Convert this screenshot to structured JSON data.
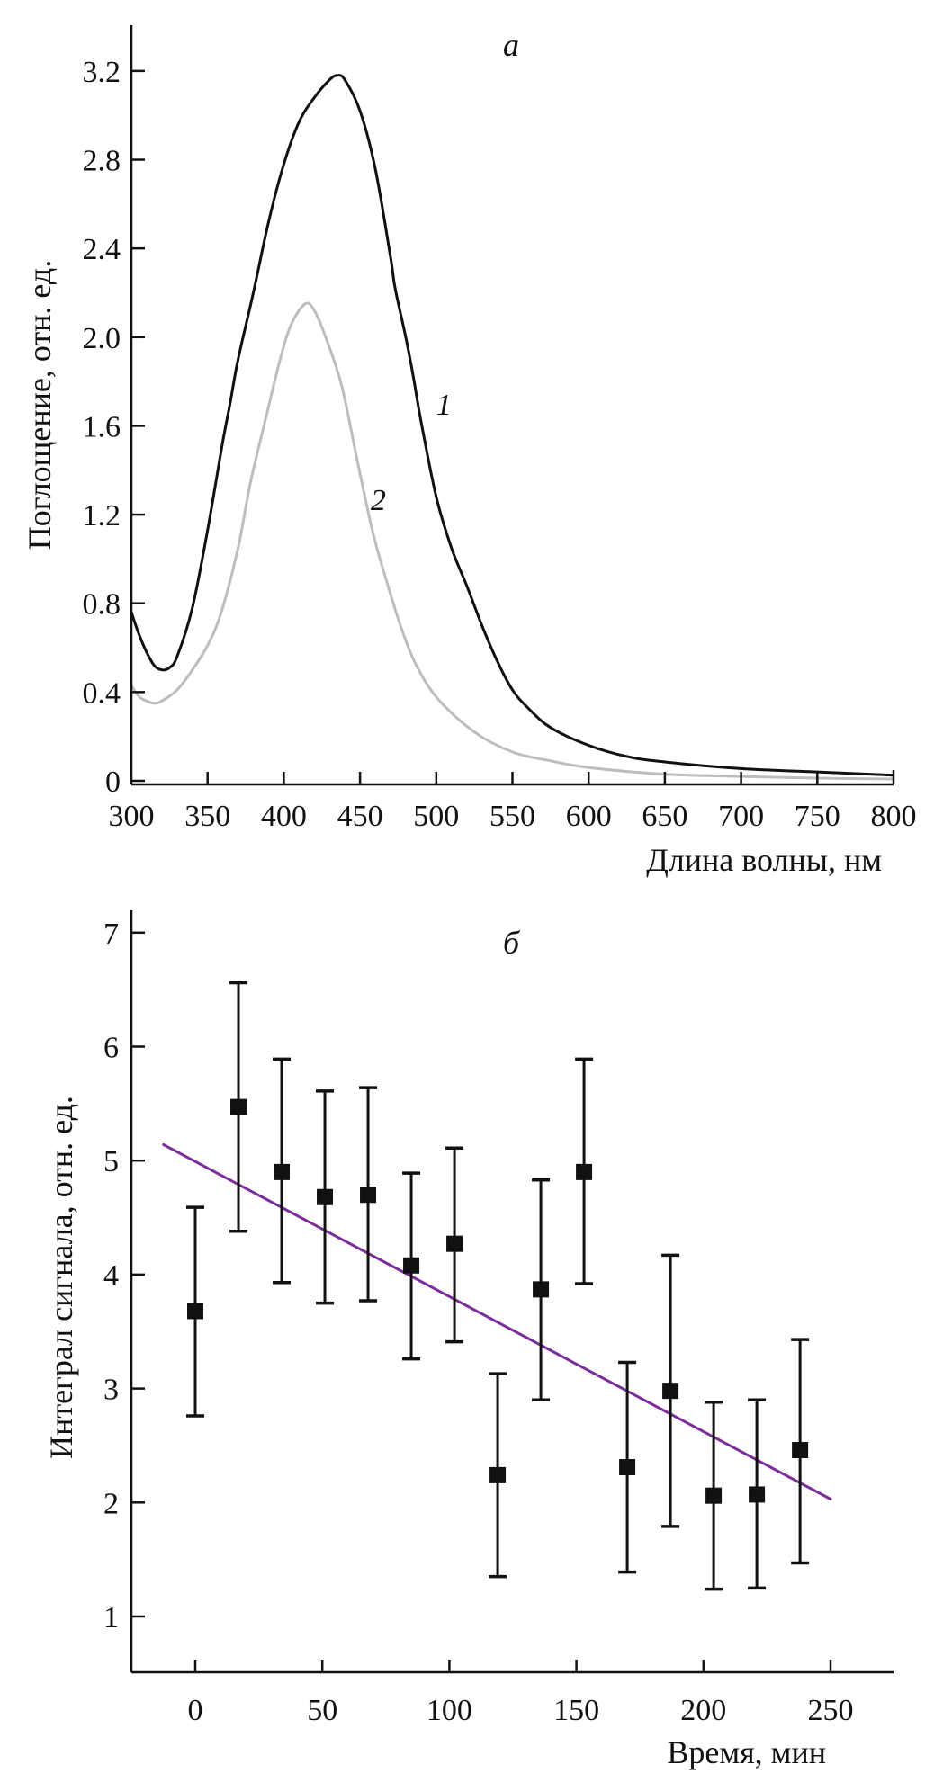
{
  "chart_data": [
    {
      "id": "a",
      "type": "line",
      "panel_label": "а",
      "xlabel": "Длина волны, нм",
      "ylabel": "Поглощение, отн. ед.",
      "xlim": [
        300,
        800
      ],
      "ylim": [
        0,
        3.35
      ],
      "xticks": [
        300,
        350,
        400,
        450,
        500,
        550,
        600,
        650,
        700,
        750,
        800
      ],
      "xtick_labels": [
        "300",
        "350",
        "400",
        "450",
        "500",
        "550",
        "600",
        "650",
        "700",
        "750",
        "800"
      ],
      "yticks": [
        0,
        0.4,
        0.8,
        1.2,
        1.6,
        2.0,
        2.4,
        2.8,
        3.2
      ],
      "ytick_labels": [
        "0",
        "0.4",
        "0.8",
        "1.2",
        "1.6",
        "2.0",
        "2.4",
        "2.8",
        "3.2"
      ],
      "grid": false,
      "series": [
        {
          "name": "1",
          "color": "#111111",
          "x": [
            300,
            305,
            310,
            315,
            320,
            325,
            330,
            340,
            350,
            360,
            365,
            370,
            380,
            390,
            400,
            410,
            420,
            430,
            435,
            440,
            450,
            460,
            470,
            473,
            480,
            485,
            490,
            500,
            510,
            520,
            530,
            540,
            550,
            560,
            575,
            600,
            625,
            650,
            700,
            750,
            800
          ],
          "y": [
            0.76,
            0.66,
            0.58,
            0.52,
            0.5,
            0.51,
            0.56,
            0.78,
            1.13,
            1.53,
            1.71,
            1.9,
            2.2,
            2.52,
            2.78,
            2.97,
            3.08,
            3.16,
            3.18,
            3.16,
            3.02,
            2.76,
            2.36,
            2.22,
            2.0,
            1.82,
            1.62,
            1.28,
            1.05,
            0.88,
            0.7,
            0.54,
            0.41,
            0.33,
            0.24,
            0.16,
            0.11,
            0.085,
            0.055,
            0.04,
            0.025
          ]
        },
        {
          "name": "2",
          "color": "#bdbdbd",
          "x": [
            300,
            305,
            310,
            315,
            320,
            330,
            339,
            350,
            359,
            370,
            378,
            388,
            398,
            405,
            414,
            420,
            428,
            438,
            448,
            458,
            467,
            477,
            487,
            501,
            525,
            550,
            575,
            600,
            650,
            700,
            750,
            800
          ],
          "y": [
            0.43,
            0.38,
            0.36,
            0.35,
            0.36,
            0.41,
            0.49,
            0.61,
            0.76,
            1.05,
            1.34,
            1.63,
            1.91,
            2.06,
            2.15,
            2.12,
            1.99,
            1.78,
            1.45,
            1.13,
            0.91,
            0.69,
            0.52,
            0.37,
            0.22,
            0.13,
            0.09,
            0.06,
            0.03,
            0.02,
            0.012,
            0.008
          ]
        }
      ],
      "annotations": [
        {
          "text": "1",
          "x": 505,
          "y": 1.7
        },
        {
          "text": "2",
          "x": 462,
          "y": 1.27
        }
      ]
    },
    {
      "id": "b",
      "type": "scatter",
      "panel_label": "б",
      "xlabel": "Время, мин",
      "ylabel": "Интеграл сигнала, отн. ед.",
      "xlim": [
        -25,
        275
      ],
      "ylim": [
        0.5,
        7.2
      ],
      "xticks": [
        0,
        50,
        100,
        150,
        200,
        250
      ],
      "xtick_labels": [
        "0",
        "50",
        "100",
        "150",
        "200",
        "250"
      ],
      "yticks": [
        1,
        2,
        3,
        4,
        5,
        6,
        7
      ],
      "ytick_labels": [
        "1",
        "2",
        "3",
        "4",
        "5",
        "6",
        "7"
      ],
      "grid": false,
      "points": {
        "name": "measurements",
        "color": "#111111",
        "x": [
          0,
          17,
          34,
          51,
          68,
          85,
          102,
          119,
          136,
          153,
          170,
          187,
          204,
          221,
          238
        ],
        "y": [
          3.68,
          5.47,
          4.9,
          4.68,
          4.7,
          4.08,
          4.27,
          2.24,
          3.87,
          4.9,
          2.31,
          2.98,
          2.06,
          2.07,
          2.46
        ],
        "err_low": [
          2.76,
          4.38,
          3.93,
          3.75,
          3.77,
          3.26,
          3.41,
          1.35,
          2.9,
          3.92,
          1.39,
          1.79,
          1.24,
          1.25,
          1.47
        ],
        "err_high": [
          4.59,
          6.56,
          5.89,
          5.61,
          5.64,
          4.89,
          5.11,
          3.13,
          4.83,
          5.89,
          3.23,
          4.17,
          2.88,
          2.9,
          3.43
        ]
      },
      "fit_line": {
        "name": "linear fit",
        "color": "#7b2d9a",
        "x": [
          -12.5,
          250
        ],
        "y": [
          5.14,
          2.03
        ]
      }
    }
  ]
}
